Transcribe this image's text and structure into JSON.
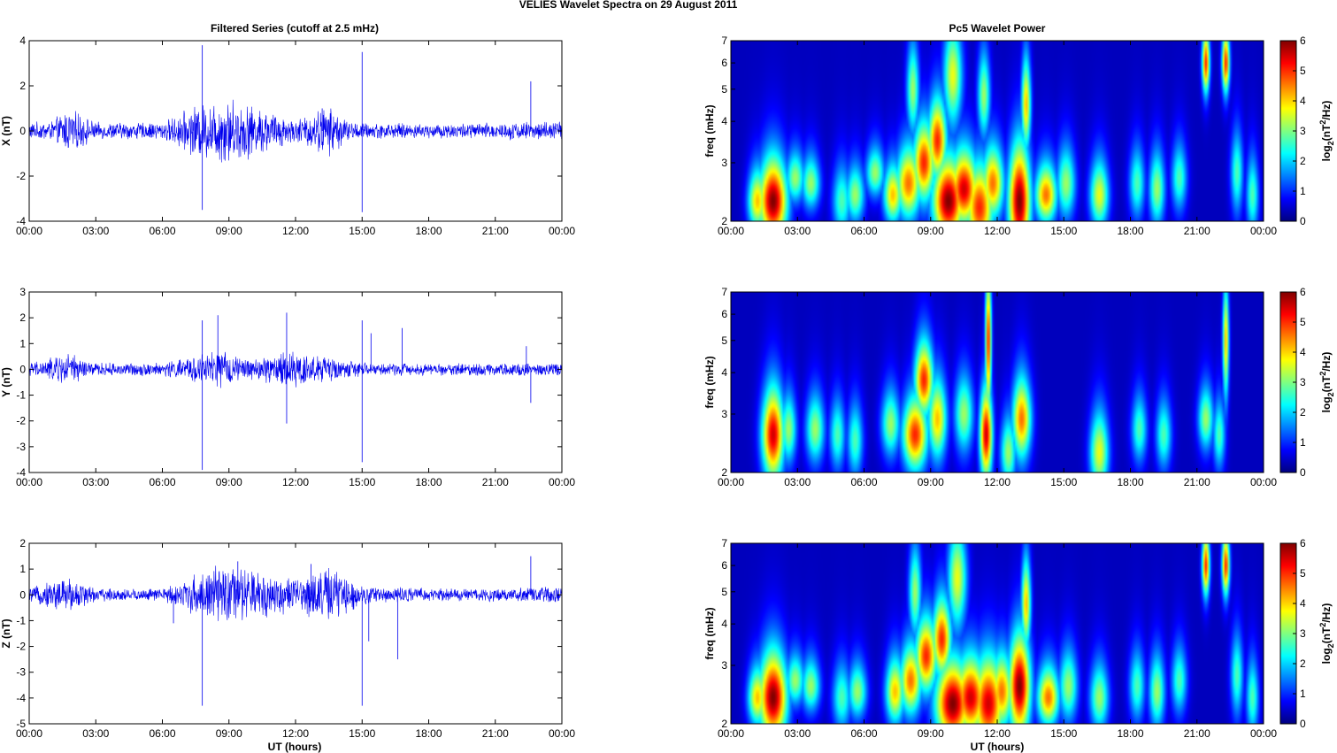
{
  "figure": {
    "title": "VELIES Wavelet Spectra on 29 August    2011",
    "left_title": "Filtered Series (cutoff at 2.5 mHz)",
    "right_title": "Pc5 Wavelet Power",
    "xlabel": "UT (hours)",
    "freq_label": "freq (mHz)",
    "cbar_label": "log2(nT^2/Hz)",
    "cbar_label_parts": {
      "pre": "log",
      "sub": "2",
      "mid": "(nT",
      "sup": "2",
      "post": "/Hz)"
    },
    "colors": {
      "series": "#0000ee",
      "axes": "#000000",
      "grid": "#d0d0d0",
      "background": "#00008f"
    },
    "colormap": "jet"
  },
  "chart_data": [
    {
      "type": "line",
      "component": "X",
      "ylabel": "X (nT)",
      "ylim": [
        -4,
        4
      ],
      "yticks": [
        -4,
        -2,
        0,
        2,
        4
      ],
      "xticks": [
        "00:00",
        "03:00",
        "06:00",
        "09:00",
        "12:00",
        "15:00",
        "18:00",
        "21:00",
        "00:00"
      ],
      "xlim_hours": [
        0,
        24
      ],
      "activity": [
        [
          0,
          0.3
        ],
        [
          1,
          0.35
        ],
        [
          1.8,
          0.8
        ],
        [
          3,
          0.3
        ],
        [
          6,
          0.3
        ],
        [
          7.5,
          0.9
        ],
        [
          9,
          1.2
        ],
        [
          10.5,
          0.8
        ],
        [
          12,
          0.4
        ],
        [
          13.5,
          0.9
        ],
        [
          14.5,
          0.3
        ],
        [
          18,
          0.25
        ],
        [
          21,
          0.3
        ],
        [
          24,
          0.35
        ]
      ],
      "spikes": [
        [
          7.8,
          3.8
        ],
        [
          7.8,
          -3.5
        ],
        [
          15.0,
          3.5
        ],
        [
          15.0,
          -3.6
        ],
        [
          22.6,
          2.2
        ],
        [
          13.2,
          1.0
        ]
      ]
    },
    {
      "type": "line",
      "component": "Y",
      "ylabel": "Y (nT)",
      "ylim": [
        -4,
        3
      ],
      "yticks": [
        -4,
        -3,
        -2,
        -1,
        0,
        1,
        2,
        3
      ],
      "xticks": [
        "00:00",
        "03:00",
        "06:00",
        "09:00",
        "12:00",
        "15:00",
        "18:00",
        "21:00",
        "00:00"
      ],
      "xlim_hours": [
        0,
        24
      ],
      "activity": [
        [
          0,
          0.2
        ],
        [
          1.8,
          0.5
        ],
        [
          3,
          0.2
        ],
        [
          6,
          0.2
        ],
        [
          8.5,
          0.6
        ],
        [
          10,
          0.3
        ],
        [
          11.6,
          0.6
        ],
        [
          13.5,
          0.4
        ],
        [
          15,
          0.2
        ],
        [
          18,
          0.18
        ],
        [
          21,
          0.2
        ],
        [
          24,
          0.2
        ]
      ],
      "spikes": [
        [
          7.8,
          1.9
        ],
        [
          7.8,
          -3.9
        ],
        [
          8.5,
          2.1
        ],
        [
          11.6,
          2.2
        ],
        [
          11.6,
          -2.1
        ],
        [
          15.0,
          1.9
        ],
        [
          15.0,
          -3.6
        ],
        [
          15.4,
          1.4
        ],
        [
          16.8,
          1.6
        ],
        [
          22.6,
          -1.3
        ],
        [
          22.4,
          0.9
        ]
      ]
    },
    {
      "type": "line",
      "component": "Z",
      "ylabel": "Z (nT)",
      "ylim": [
        -5,
        2
      ],
      "yticks": [
        -5,
        -4,
        -3,
        -2,
        -1,
        0,
        1,
        2
      ],
      "xticks": [
        "00:00",
        "03:00",
        "06:00",
        "09:00",
        "12:00",
        "15:00",
        "18:00",
        "21:00",
        "00:00"
      ],
      "xlim_hours": [
        0,
        24
      ],
      "activity": [
        [
          0,
          0.2
        ],
        [
          1.8,
          0.6
        ],
        [
          3,
          0.2
        ],
        [
          6,
          0.2
        ],
        [
          8.5,
          0.9
        ],
        [
          10,
          0.8
        ],
        [
          12,
          0.5
        ],
        [
          13.5,
          0.9
        ],
        [
          15,
          0.3
        ],
        [
          18,
          0.2
        ],
        [
          21,
          0.2
        ],
        [
          24,
          0.25
        ]
      ],
      "spikes": [
        [
          7.8,
          -4.3
        ],
        [
          6.5,
          -1.1
        ],
        [
          15.0,
          -4.3
        ],
        [
          15.3,
          -1.8
        ],
        [
          16.6,
          -2.5
        ],
        [
          22.6,
          1.5
        ],
        [
          12.7,
          1.2
        ],
        [
          9.4,
          1.3
        ]
      ]
    },
    {
      "type": "heatmap",
      "component": "X",
      "ylabel": "freq (mHz)",
      "yscale": "log",
      "ylim": [
        2,
        7
      ],
      "yticks": [
        2,
        3,
        4,
        5,
        6,
        7
      ],
      "xticks": [
        "00:00",
        "03:00",
        "06:00",
        "09:00",
        "12:00",
        "15:00",
        "18:00",
        "21:00",
        "00:00"
      ],
      "xlim_hours": [
        0,
        24
      ],
      "colorbar": {
        "ticks": [
          0,
          1,
          2,
          3,
          4,
          5,
          6
        ],
        "clim": [
          0,
          6
        ]
      },
      "blobs": [
        [
          1.9,
          2.3,
          0.45,
          0.4,
          6
        ],
        [
          1.2,
          2.3,
          0.3,
          0.3,
          4
        ],
        [
          2.9,
          2.7,
          0.3,
          0.3,
          3
        ],
        [
          3.6,
          2.6,
          0.3,
          0.3,
          3
        ],
        [
          5.0,
          2.3,
          0.3,
          0.35,
          2.5
        ],
        [
          5.6,
          2.4,
          0.3,
          0.3,
          3
        ],
        [
          6.5,
          2.8,
          0.3,
          0.3,
          3
        ],
        [
          7.3,
          2.4,
          0.3,
          0.3,
          4
        ],
        [
          8.0,
          2.6,
          0.4,
          0.4,
          4.5
        ],
        [
          8.7,
          3.0,
          0.35,
          0.5,
          5
        ],
        [
          9.3,
          3.5,
          0.3,
          0.6,
          5
        ],
        [
          9.8,
          2.3,
          0.5,
          0.4,
          6
        ],
        [
          10.5,
          2.5,
          0.45,
          0.4,
          5.5
        ],
        [
          11.2,
          2.2,
          0.45,
          0.4,
          5
        ],
        [
          11.8,
          2.6,
          0.35,
          0.4,
          4.5
        ],
        [
          13.0,
          2.3,
          0.35,
          0.55,
          6
        ],
        [
          13.3,
          4.5,
          0.15,
          0.9,
          4
        ],
        [
          14.2,
          2.4,
          0.35,
          0.3,
          4.5
        ],
        [
          15.1,
          2.6,
          0.3,
          0.4,
          3
        ],
        [
          16.6,
          2.4,
          0.3,
          0.35,
          3.5
        ],
        [
          18.3,
          2.6,
          0.25,
          0.4,
          2.5
        ],
        [
          19.2,
          2.5,
          0.25,
          0.4,
          3
        ],
        [
          20.2,
          2.7,
          0.25,
          0.4,
          2.5
        ],
        [
          21.4,
          6.0,
          0.12,
          0.8,
          5
        ],
        [
          22.3,
          6.0,
          0.12,
          0.8,
          5
        ],
        [
          22.8,
          2.8,
          0.2,
          0.5,
          2.5
        ],
        [
          23.5,
          2.4,
          0.2,
          0.4,
          2.5
        ],
        [
          10.0,
          5.5,
          0.3,
          1.2,
          3.5
        ],
        [
          8.2,
          5.0,
          0.2,
          1.0,
          3
        ],
        [
          11.4,
          4.8,
          0.2,
          0.9,
          3
        ]
      ]
    },
    {
      "type": "heatmap",
      "component": "Y",
      "ylabel": "freq (mHz)",
      "yscale": "log",
      "ylim": [
        2,
        7
      ],
      "yticks": [
        2,
        3,
        4,
        5,
        6,
        7
      ],
      "xticks": [
        "00:00",
        "03:00",
        "06:00",
        "09:00",
        "12:00",
        "15:00",
        "18:00",
        "21:00",
        "00:00"
      ],
      "xlim_hours": [
        0,
        24
      ],
      "colorbar": {
        "ticks": [
          0,
          1,
          2,
          3,
          4,
          5,
          6
        ],
        "clim": [
          0,
          6
        ]
      },
      "blobs": [
        [
          1.9,
          2.6,
          0.35,
          0.5,
          5.5
        ],
        [
          2.6,
          2.7,
          0.25,
          0.4,
          3
        ],
        [
          3.8,
          2.7,
          0.3,
          0.4,
          3
        ],
        [
          4.8,
          2.6,
          0.25,
          0.4,
          2.5
        ],
        [
          5.6,
          2.5,
          0.25,
          0.4,
          2.5
        ],
        [
          7.2,
          2.8,
          0.3,
          0.4,
          3
        ],
        [
          8.3,
          2.6,
          0.4,
          0.4,
          5
        ],
        [
          8.7,
          3.8,
          0.3,
          0.6,
          5
        ],
        [
          9.3,
          2.9,
          0.3,
          0.5,
          4
        ],
        [
          10.5,
          3.0,
          0.3,
          0.5,
          3
        ],
        [
          11.5,
          2.6,
          0.2,
          0.5,
          5.5
        ],
        [
          11.6,
          5.0,
          0.1,
          1.5,
          5
        ],
        [
          12.5,
          2.3,
          0.25,
          0.35,
          3
        ],
        [
          13.1,
          2.9,
          0.3,
          0.5,
          4.5
        ],
        [
          16.6,
          2.3,
          0.3,
          0.4,
          3.5
        ],
        [
          18.4,
          2.7,
          0.25,
          0.4,
          2.5
        ],
        [
          19.5,
          2.6,
          0.25,
          0.4,
          2.5
        ],
        [
          21.4,
          2.9,
          0.25,
          0.4,
          3
        ],
        [
          22.3,
          5.0,
          0.1,
          1.2,
          4
        ],
        [
          22.0,
          2.6,
          0.2,
          0.4,
          2.5
        ]
      ]
    },
    {
      "type": "heatmap",
      "component": "Z",
      "ylabel": "freq (mHz)",
      "yscale": "log",
      "ylim": [
        2,
        7
      ],
      "yticks": [
        2,
        3,
        4,
        5,
        6,
        7
      ],
      "xticks": [
        "00:00",
        "03:00",
        "06:00",
        "09:00",
        "12:00",
        "15:00",
        "18:00",
        "21:00",
        "00:00"
      ],
      "xlim_hours": [
        0,
        24
      ],
      "colorbar": {
        "ticks": [
          0,
          1,
          2,
          3,
          4,
          5,
          6
        ],
        "clim": [
          0,
          6
        ]
      },
      "blobs": [
        [
          1.9,
          2.4,
          0.45,
          0.45,
          6
        ],
        [
          1.2,
          2.4,
          0.3,
          0.3,
          4
        ],
        [
          2.9,
          2.7,
          0.3,
          0.3,
          3
        ],
        [
          3.6,
          2.6,
          0.3,
          0.3,
          3
        ],
        [
          5.0,
          2.4,
          0.3,
          0.35,
          2.5
        ],
        [
          5.7,
          2.5,
          0.3,
          0.3,
          3
        ],
        [
          7.4,
          2.5,
          0.3,
          0.35,
          4
        ],
        [
          8.1,
          2.7,
          0.35,
          0.4,
          4.5
        ],
        [
          8.8,
          3.2,
          0.35,
          0.5,
          5
        ],
        [
          9.5,
          3.6,
          0.3,
          0.6,
          5
        ],
        [
          10.0,
          2.3,
          0.55,
          0.4,
          6
        ],
        [
          10.8,
          2.4,
          0.5,
          0.4,
          5.5
        ],
        [
          11.6,
          2.3,
          0.5,
          0.45,
          5.5
        ],
        [
          12.2,
          2.5,
          0.35,
          0.4,
          4.5
        ],
        [
          13.0,
          2.6,
          0.35,
          0.55,
          6
        ],
        [
          13.3,
          4.6,
          0.15,
          0.9,
          4
        ],
        [
          14.3,
          2.4,
          0.35,
          0.3,
          4.5
        ],
        [
          15.2,
          2.6,
          0.3,
          0.4,
          3
        ],
        [
          16.6,
          2.4,
          0.3,
          0.35,
          3
        ],
        [
          18.3,
          2.6,
          0.25,
          0.4,
          2.5
        ],
        [
          19.2,
          2.5,
          0.25,
          0.4,
          3
        ],
        [
          20.2,
          2.7,
          0.25,
          0.4,
          2.5
        ],
        [
          21.4,
          6.0,
          0.12,
          0.8,
          5
        ],
        [
          22.3,
          6.0,
          0.12,
          0.8,
          5
        ],
        [
          22.8,
          2.8,
          0.2,
          0.5,
          2.5
        ],
        [
          23.5,
          2.4,
          0.2,
          0.4,
          2.5
        ],
        [
          10.2,
          5.5,
          0.3,
          1.2,
          3.5
        ],
        [
          8.3,
          5.0,
          0.2,
          1.0,
          3
        ]
      ]
    }
  ]
}
